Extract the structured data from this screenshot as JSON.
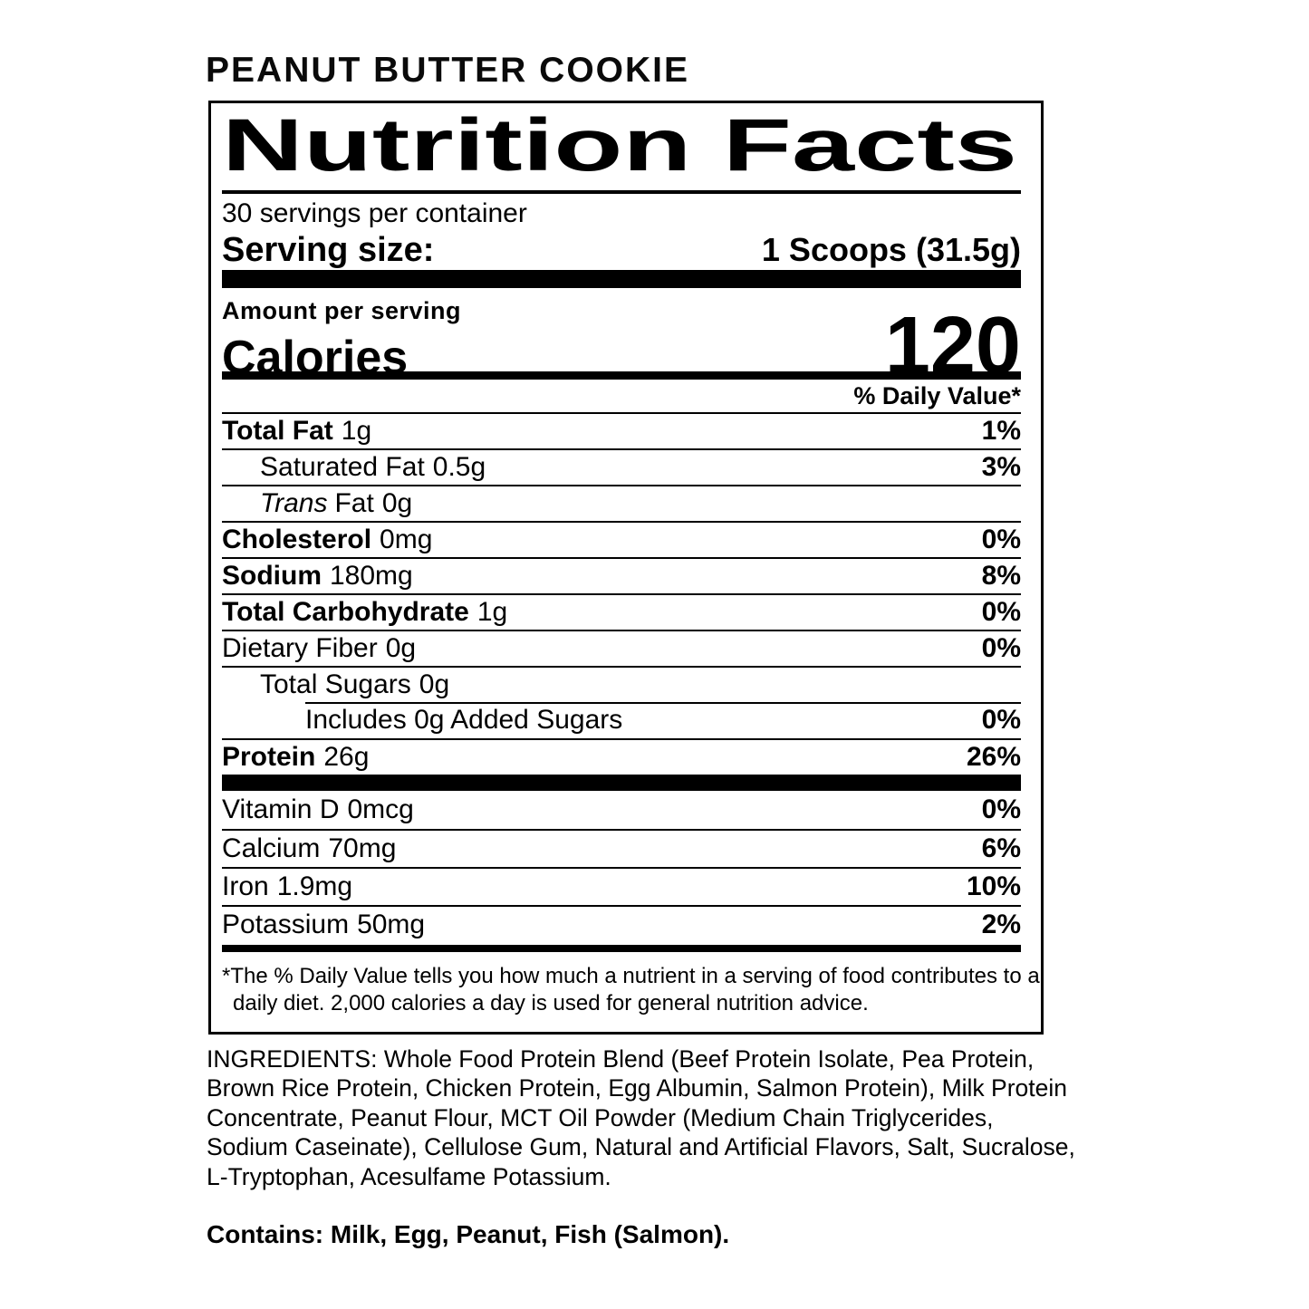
{
  "product": {
    "flavor_title": "PEANUT BUTTER COOKIE"
  },
  "nutrition_label": {
    "title": "Nutrition Facts",
    "servings_per_container": "30 servings per container",
    "serving_size": {
      "label": "Serving size:",
      "value": "1 Scoops (31.5g)"
    },
    "amount_per_serving_label": "Amount per serving",
    "calories": {
      "label": "Calories",
      "value": "120"
    },
    "daily_value_header": "% Daily Value*",
    "nutrient_rows": [
      {
        "name": "Total Fat",
        "amount": "1g",
        "daily_value": "1%"
      },
      {
        "name": "Saturated Fat",
        "amount": "0.5g",
        "daily_value": "3%"
      },
      {
        "name_italic": "Trans",
        "name": "Fat",
        "amount": "0g",
        "daily_value": ""
      },
      {
        "name": "Cholesterol",
        "amount": "0mg",
        "daily_value": "0%"
      },
      {
        "name": "Sodium",
        "amount": "180mg",
        "daily_value": "8%"
      },
      {
        "name": "Total Carbohydrate",
        "amount": "1g",
        "daily_value": "0%"
      },
      {
        "name": "Dietary Fiber",
        "amount": "0g",
        "daily_value": "0%"
      },
      {
        "name": "Total Sugars",
        "amount": "0g",
        "daily_value": ""
      },
      {
        "name": "Includes 0g Added Sugars",
        "amount": "",
        "daily_value": "0%"
      },
      {
        "name": "Protein",
        "amount": "26g",
        "daily_value": "26%"
      }
    ],
    "micronutrient_rows": [
      {
        "name": "Vitamin D",
        "amount": "0mcg",
        "daily_value": "0%"
      },
      {
        "name": "Calcium",
        "amount": "70mg",
        "daily_value": "6%"
      },
      {
        "name": "Iron",
        "amount": "1.9mg",
        "daily_value": "10%"
      },
      {
        "name": "Potassium",
        "amount": "50mg",
        "daily_value": "2%"
      }
    ],
    "footnote": "*The % Daily Value tells you how much a nutrient in a serving of food contributes to a daily diet. 2,000 calories a day is used for general nutrition advice."
  },
  "ingredients": {
    "text": "INGREDIENTS: Whole Food Protein Blend (Beef Protein Isolate, Pea Protein, Brown Rice Protein, Chicken Protein, Egg Albumin, Salmon Protein), Milk Protein Concentrate, Peanut Flour, MCT Oil Powder (Medium Chain Triglycerides, Sodium Caseinate), Cellulose Gum, Natural and Artificial Flavors, Salt, Sucralose, L-Tryptophan, Acesulfame Potassium."
  },
  "allergens": {
    "text": "Contains: Milk, Egg, Peanut, Fish (Salmon)."
  }
}
